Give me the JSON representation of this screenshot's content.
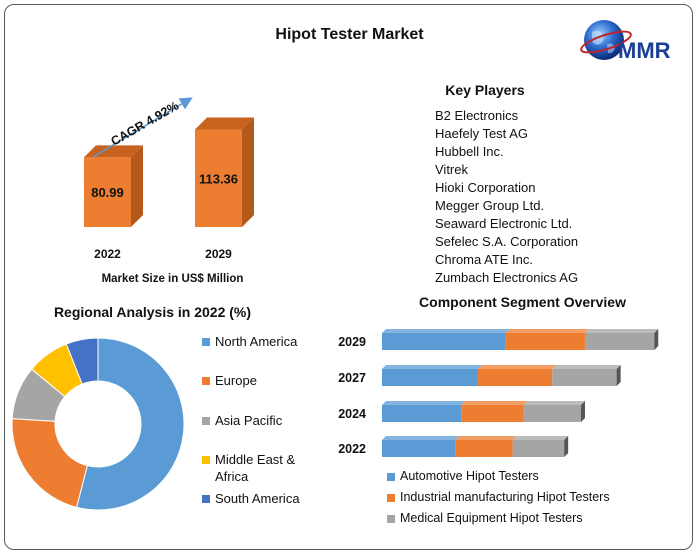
{
  "title": "Hipot Tester Market",
  "logo_text": "MMR",
  "market_chart": {
    "cagr_label": "CAGR 4.92%",
    "caption": "Market Size in US$ Million"
  },
  "key_players": {
    "title": "Key Players",
    "items": [
      "B2 Electronics",
      "Haefely Test AG",
      "Hubbell Inc.",
      "Vitrek",
      "Hioki Corporation",
      "Megger Group Ltd.",
      "Seaward Electronic Ltd.",
      "Sefelec S.A. Corporation",
      "Chroma ATE Inc.",
      "Zumbach Electronics AG"
    ]
  },
  "colors": {
    "bar_front": "#ed7d31",
    "bar_side": "#b5581c",
    "bar_top": "#c8621f",
    "arrow": "#5b9bd5",
    "blue": "#5b9bd5",
    "orange": "#ed7d31",
    "gray": "#a5a5a5",
    "yellow": "#ffc000",
    "dark_blue": "#4472c4"
  },
  "chart_data": [
    {
      "type": "bar",
      "categories": [
        "2022",
        "2029"
      ],
      "values": [
        80.99,
        113.36
      ],
      "xlabel": "Market Size in US$ Million",
      "annotation": "CAGR 4.92%"
    },
    {
      "type": "pie",
      "title": "Regional Analysis in 2022 (%)",
      "labels": [
        "North America",
        "Europe",
        "Asia Pacific",
        "Middle East & Africa",
        "South America"
      ],
      "values": [
        54,
        22,
        10,
        8,
        6
      ],
      "colors": [
        "#5b9bd5",
        "#ed7d31",
        "#a5a5a5",
        "#ffc000",
        "#4472c4"
      ],
      "legend": "right"
    },
    {
      "type": "bar",
      "orientation": "horizontal",
      "stacked": true,
      "title": "Component Segment Overview",
      "categories": [
        "2029",
        "2027",
        "2024",
        "2022"
      ],
      "series": [
        {
          "name": "Automotive Hipot Testers",
          "values": [
            125,
            97,
            80,
            74
          ],
          "color": "#5b9bd5"
        },
        {
          "name": "Industrial manufacturing Hipot Testers",
          "values": [
            80,
            75,
            63,
            58
          ],
          "color": "#ed7d31"
        },
        {
          "name": "Medical Equipment Hipot Testers",
          "values": [
            70,
            65,
            58,
            52
          ],
          "color": "#a5a5a5"
        }
      ],
      "legend": "bottom"
    }
  ]
}
